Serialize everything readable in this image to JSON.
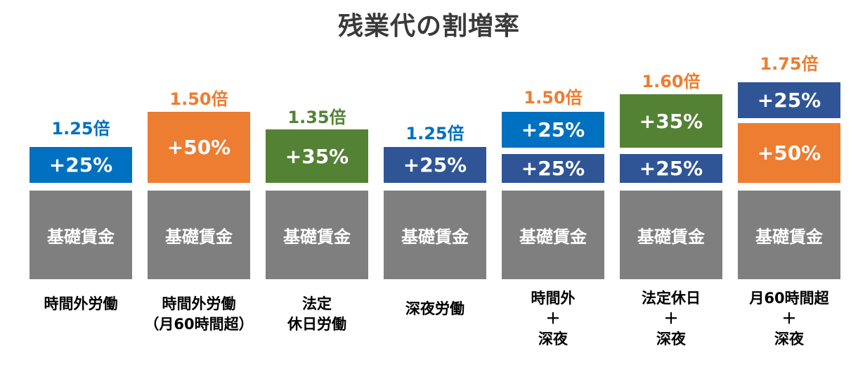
{
  "title": "残業代の割増率",
  "colors": {
    "blue": "#0070c0",
    "orange": "#ed7d31",
    "green": "#548235",
    "navy": "#2f5597",
    "gray": "#7f7f7f"
  },
  "columns": [
    {
      "multiplier": "1.25倍",
      "multiplier_color": "#0070c0",
      "base": "基礎賃金",
      "blocks": [
        {
          "label": "+25%",
          "color": "#0070c0"
        }
      ],
      "caption": [
        "時間外労働"
      ]
    },
    {
      "multiplier": "1.50倍",
      "multiplier_color": "#ed7d31",
      "base": "基礎賃金",
      "blocks": [
        {
          "label": "+50%",
          "color": "#ed7d31"
        }
      ],
      "caption": [
        "時間外労働",
        "（月60時間超）"
      ]
    },
    {
      "multiplier": "1.35倍",
      "multiplier_color": "#548235",
      "base": "基礎賃金",
      "blocks": [
        {
          "label": "+35%",
          "color": "#548235"
        }
      ],
      "caption": [
        "法定",
        "休日労働"
      ]
    },
    {
      "multiplier": "1.25倍",
      "multiplier_color": "#0070c0",
      "base": "基礎賃金",
      "blocks": [
        {
          "label": "+25%",
          "color": "#2f5597"
        }
      ],
      "caption": [
        "深夜労働"
      ]
    },
    {
      "multiplier": "1.50倍",
      "multiplier_color": "#ed7d31",
      "base": "基礎賃金",
      "blocks": [
        {
          "label": "+25%",
          "color": "#0070c0"
        },
        {
          "label": "+25%",
          "color": "#2f5597"
        }
      ],
      "caption": [
        "時間外",
        "＋",
        "深夜"
      ]
    },
    {
      "multiplier": "1.60倍",
      "multiplier_color": "#ed7d31",
      "base": "基礎賃金",
      "blocks": [
        {
          "label": "+35%",
          "color": "#548235"
        },
        {
          "label": "+25%",
          "color": "#2f5597"
        }
      ],
      "caption": [
        "法定休日",
        "＋",
        "深夜"
      ]
    },
    {
      "multiplier": "1.75倍",
      "multiplier_color": "#ed7d31",
      "base": "基礎賃金",
      "blocks": [
        {
          "label": "+25%",
          "color": "#2f5597"
        },
        {
          "label": "+50%",
          "color": "#ed7d31"
        }
      ],
      "caption": [
        "月60時間超",
        "＋",
        "深夜"
      ]
    }
  ]
}
